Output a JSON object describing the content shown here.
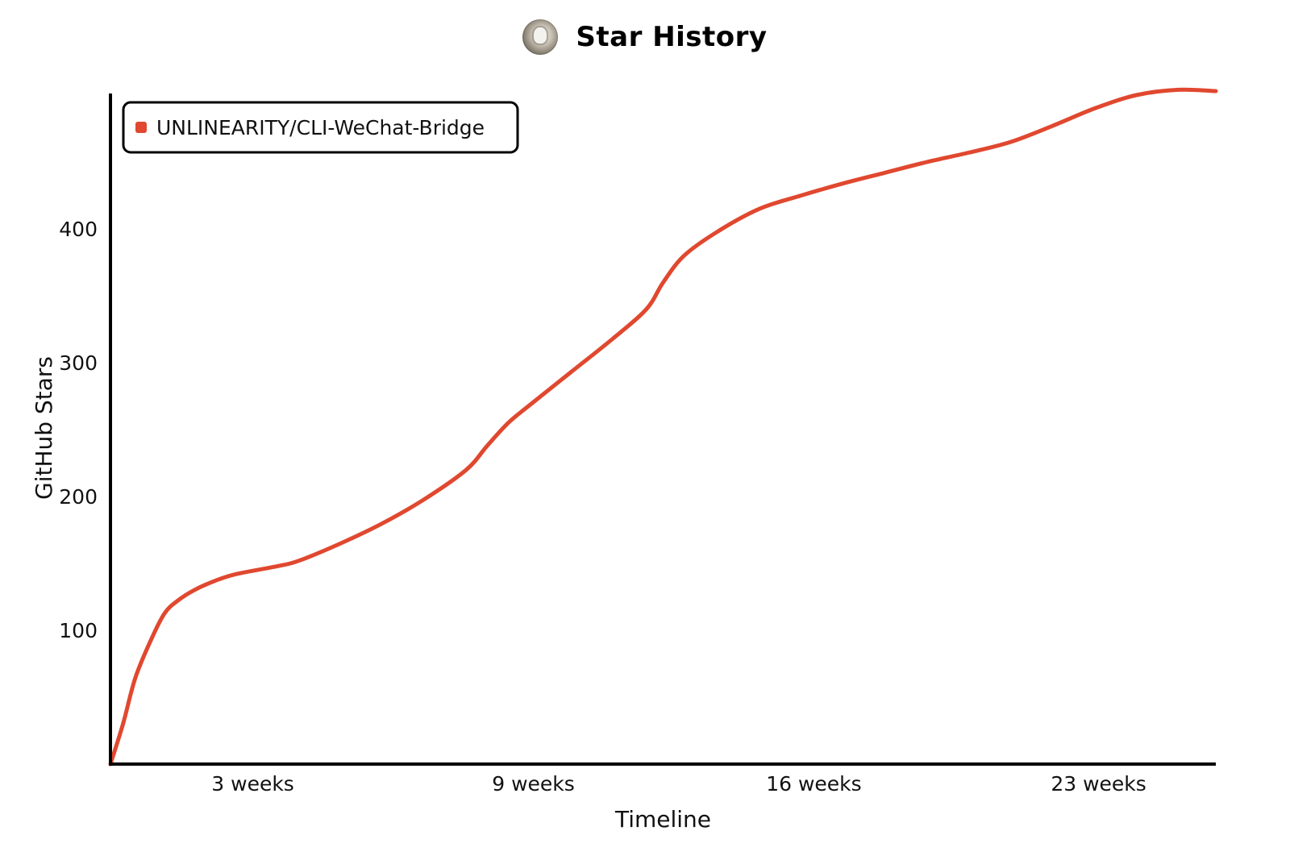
{
  "title": "Star History",
  "chart_data": {
    "type": "line",
    "title": "Star History",
    "xlabel": "Timeline",
    "ylabel": "GitHub Stars",
    "x_unit": "weeks",
    "xlim": [
      0,
      26.4
    ],
    "ylim": [
      0,
      500
    ],
    "x_ticks": [
      {
        "value": 3.4,
        "label": "3 weeks"
      },
      {
        "value": 10.1,
        "label": "9 weeks"
      },
      {
        "value": 16.8,
        "label": "16 weeks"
      },
      {
        "value": 23.6,
        "label": "23 weeks"
      }
    ],
    "y_ticks": [
      {
        "value": 100,
        "label": "100"
      },
      {
        "value": 200,
        "label": "200"
      },
      {
        "value": 300,
        "label": "300"
      },
      {
        "value": 400,
        "label": "400"
      }
    ],
    "grid": false,
    "legend_position": "top-left",
    "series": [
      {
        "name": "UNLINEARITY/CLI-WeChat-Bridge",
        "color": "#e0482f",
        "x": [
          0,
          0.3,
          0.6,
          1.0,
          1.3,
          1.6,
          2.0,
          2.5,
          3.0,
          4.0,
          4.5,
          5.5,
          6.5,
          7.5,
          8.5,
          9.0,
          9.5,
          10.0,
          11.0,
          12.0,
          12.8,
          13.2,
          13.7,
          14.5,
          15.5,
          16.5,
          17.5,
          18.5,
          19.5,
          20.5,
          21.5,
          22.5,
          23.5,
          24.5,
          25.5,
          26.4
        ],
        "y": [
          0,
          30,
          65,
          95,
          113,
          122,
          130,
          137,
          142,
          148,
          152,
          165,
          180,
          198,
          220,
          238,
          255,
          268,
          293,
          318,
          340,
          360,
          380,
          398,
          415,
          425,
          434,
          442,
          450,
          457,
          465,
          477,
          490,
          500,
          504,
          503
        ]
      }
    ]
  }
}
